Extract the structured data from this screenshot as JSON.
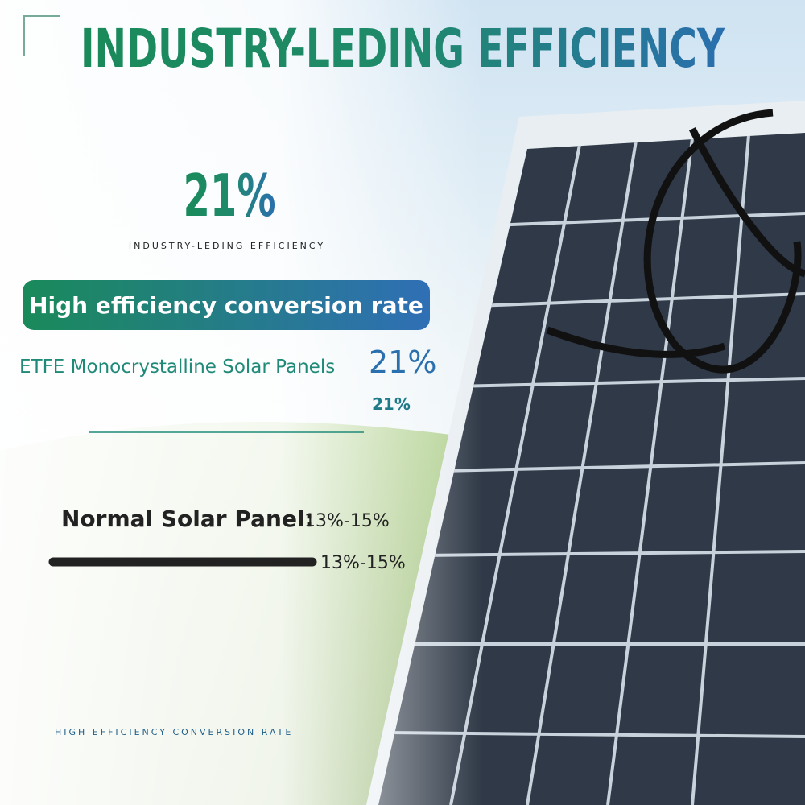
{
  "header": {
    "title": "INDUSTRY-LEDING EFFICIENCY"
  },
  "highlight": {
    "value": "21%",
    "caption": "INDUSTRY-LEDING EFFICIENCY"
  },
  "badge": "High efficiency conversion rate",
  "comparison": [
    {
      "label": "ETFE Monocrystalline Solar Panels",
      "value": "21%",
      "bar_label": "21%"
    },
    {
      "label": "Normal Solar Panel:",
      "value": "13%-15%",
      "bar_label": "13%-15%"
    }
  ],
  "footer": "HIGH EFFICIENCY CONVERSION RATE"
}
